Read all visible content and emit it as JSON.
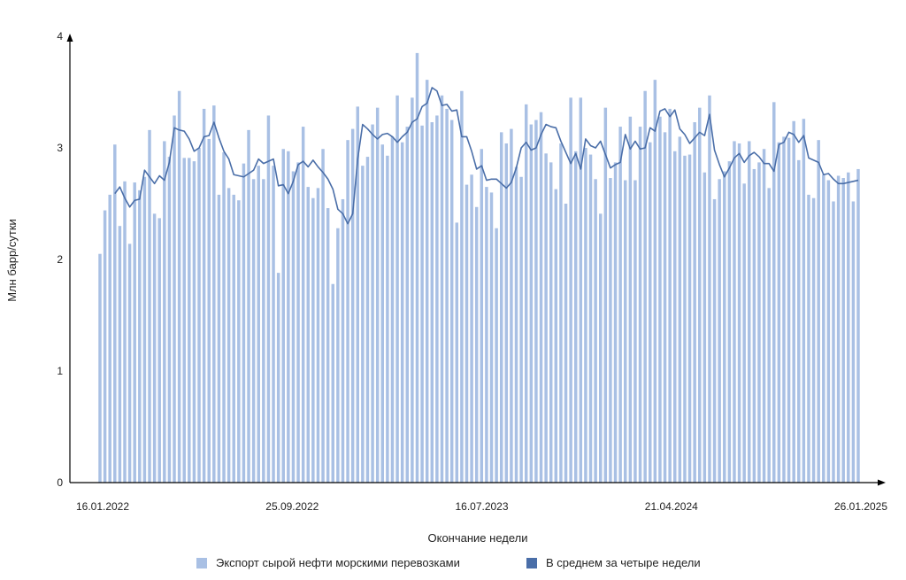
{
  "chart_data": {
    "type": "bar",
    "ylabel": "Млн барр/сутки",
    "xlabel": "Окончание недели",
    "ylim": [
      0,
      4
    ],
    "yticks": [
      "0",
      "1",
      "2",
      "3",
      "4"
    ],
    "x_start": "16.01.2022",
    "x_end": "26.01.2025",
    "xticks": [
      "16.01.2022",
      "25.09.2022",
      "16.07.2023",
      "21.04.2024",
      "26.01.2025"
    ],
    "grid": false,
    "legend_position": "bottom",
    "colors": {
      "bars": "#a9c0e4",
      "line": "#4a6ea8",
      "axis": "#000000"
    },
    "series": [
      {
        "name": "Экспорт сырой нефти морскими перевозками",
        "type": "bar",
        "values": [
          2.05,
          2.44,
          2.58,
          3.03,
          2.3,
          2.7,
          2.14,
          2.69,
          2.62,
          2.74,
          3.16,
          2.41,
          2.37,
          3.06,
          2.92,
          3.29,
          3.51,
          2.91,
          2.91,
          2.88,
          3.0,
          3.35,
          3.08,
          3.38,
          2.58,
          2.96,
          2.64,
          2.58,
          2.53,
          2.86,
          3.16,
          2.72,
          2.84,
          2.72,
          3.29,
          2.84,
          1.88,
          2.99,
          2.97,
          2.79,
          2.87,
          3.19,
          2.65,
          2.55,
          2.64,
          2.99,
          2.46,
          1.78,
          2.28,
          2.54,
          3.07,
          3.17,
          3.37,
          2.84,
          2.92,
          3.21,
          3.36,
          3.03,
          2.93,
          3.1,
          3.47,
          3.05,
          3.19,
          3.45,
          3.85,
          3.2,
          3.61,
          3.23,
          3.29,
          3.47,
          3.35,
          3.25,
          2.33,
          3.51,
          2.67,
          2.76,
          2.47,
          2.99,
          2.65,
          2.6,
          2.28,
          3.14,
          3.04,
          3.17,
          2.83,
          2.74,
          3.39,
          3.21,
          3.25,
          3.32,
          2.95,
          2.87,
          2.63,
          3.04,
          2.5,
          3.45,
          2.97,
          3.45,
          3.0,
          2.94,
          2.72,
          2.41,
          3.36,
          2.73,
          2.87,
          3.19,
          2.71,
          3.28,
          2.71,
          3.19,
          3.51,
          3.05,
          3.61,
          3.28,
          3.14,
          3.35,
          2.97,
          3.1,
          2.93,
          2.94,
          3.23,
          3.36,
          2.78,
          3.47,
          2.54,
          2.72,
          2.79,
          2.88,
          3.06,
          3.04,
          2.68,
          3.06,
          2.81,
          2.87,
          2.99,
          2.64,
          3.41,
          3.05,
          3.1,
          3.09,
          3.24,
          2.89,
          3.26,
          2.58,
          2.55,
          3.07,
          2.76,
          2.71,
          2.52,
          2.75,
          2.73,
          2.78,
          2.52,
          2.81
        ]
      },
      {
        "name": "В среднем за четыре недели",
        "type": "line",
        "values": [
          null,
          null,
          null,
          2.59,
          2.65,
          2.55,
          2.47,
          2.53,
          2.54,
          2.8,
          2.74,
          2.68,
          2.75,
          2.71,
          2.87,
          3.18,
          3.16,
          3.15,
          3.08,
          2.97,
          3.0,
          3.1,
          3.11,
          3.23,
          3.09,
          2.97,
          2.9,
          2.76,
          2.75,
          2.74,
          2.77,
          2.8,
          2.9,
          2.86,
          2.88,
          2.9,
          2.66,
          2.67,
          2.59,
          2.7,
          2.85,
          2.88,
          2.83,
          2.89,
          2.83,
          2.78,
          2.72,
          2.63,
          2.45,
          2.41,
          2.32,
          2.41,
          2.9,
          3.21,
          3.17,
          3.12,
          3.08,
          3.12,
          3.13,
          3.1,
          3.05,
          3.1,
          3.14,
          3.23,
          3.26,
          3.37,
          3.4,
          3.54,
          3.51,
          3.38,
          3.39,
          3.33,
          3.34,
          3.1,
          3.1,
          2.97,
          2.81,
          2.84,
          2.71,
          2.72,
          2.72,
          2.68,
          2.64,
          2.69,
          2.82,
          3.0,
          3.05,
          2.98,
          3.0,
          3.12,
          3.21,
          3.19,
          3.18,
          3.06,
          2.96,
          2.86,
          2.95,
          2.81,
          3.08,
          3.02,
          3.0,
          3.06,
          2.94,
          2.82,
          2.85,
          2.87,
          3.12,
          2.99,
          3.06,
          2.99,
          3.0,
          3.18,
          3.15,
          3.33,
          3.35,
          3.28,
          3.34,
          3.17,
          3.12,
          3.04,
          3.09,
          3.14,
          3.11,
          3.3,
          2.98,
          2.85,
          2.74,
          2.82,
          2.91,
          2.95,
          2.87,
          2.93,
          2.96,
          2.92,
          2.86,
          2.86,
          2.79,
          3.03,
          3.05,
          3.14,
          3.12,
          3.05,
          3.11,
          2.91,
          2.89,
          2.87,
          2.76,
          2.77,
          2.72,
          2.68,
          2.68,
          2.69,
          2.7,
          2.71
        ]
      }
    ]
  }
}
